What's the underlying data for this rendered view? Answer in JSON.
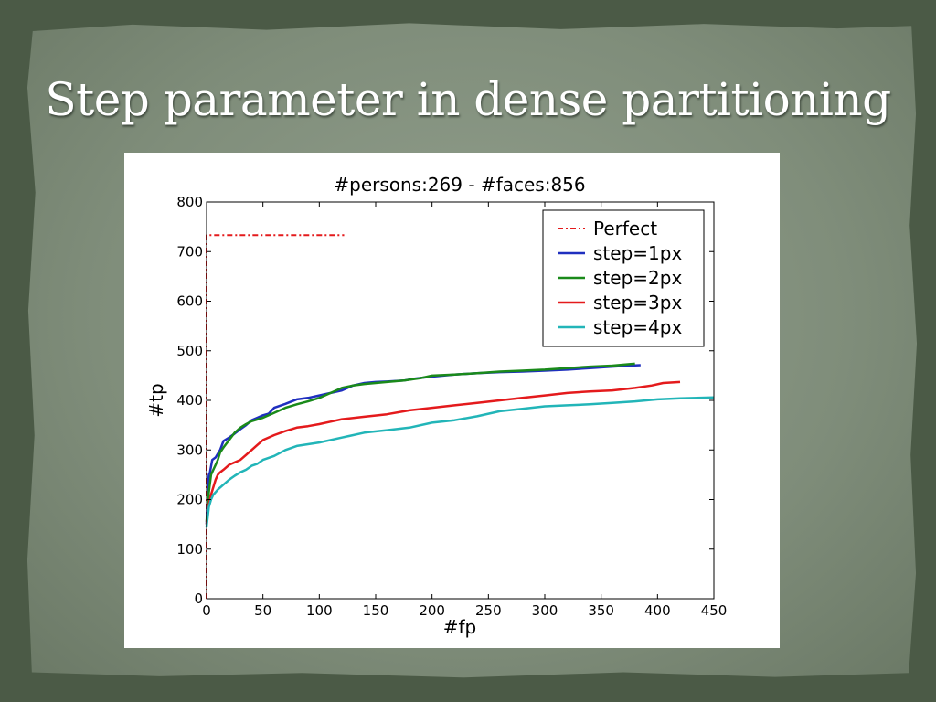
{
  "slide": {
    "title": "Step parameter in dense partitioning"
  },
  "colors": {
    "background": "#4b5a46",
    "paper": "#8b9886",
    "title_text": "#ffffff"
  },
  "chart_data": {
    "type": "line",
    "title": "#persons:269 - #faces:856",
    "xlabel": "#fp",
    "ylabel": "#tp",
    "xlim": [
      0,
      450
    ],
    "ylim": [
      0,
      800
    ],
    "xticks": [
      0,
      50,
      100,
      150,
      200,
      250,
      300,
      350,
      400,
      450
    ],
    "yticks": [
      0,
      100,
      200,
      300,
      400,
      500,
      600,
      700,
      800
    ],
    "grid": false,
    "legend_position": "top-right",
    "series": [
      {
        "name": "Perfect",
        "color": "#e41a1c",
        "dash": "dashdot",
        "x": [
          0,
          0,
          122
        ],
        "y": [
          0,
          733,
          733
        ]
      },
      {
        "name": "step=1px",
        "color": "#1f2fbf",
        "dash": "solid",
        "x": [
          0,
          1,
          2,
          3,
          5,
          8,
          12,
          15,
          20,
          25,
          30,
          35,
          40,
          45,
          50,
          55,
          60,
          70,
          80,
          90,
          100,
          110,
          120,
          130,
          140,
          150,
          160,
          175,
          185,
          200,
          220,
          240,
          260,
          280,
          300,
          320,
          340,
          360,
          375,
          385
        ],
        "y": [
          150,
          220,
          250,
          255,
          280,
          285,
          300,
          318,
          325,
          333,
          342,
          350,
          360,
          365,
          370,
          373,
          385,
          393,
          402,
          405,
          410,
          415,
          420,
          430,
          435,
          437,
          438,
          440,
          444,
          448,
          452,
          455,
          457,
          458,
          460,
          462,
          465,
          468,
          470,
          471
        ]
      },
      {
        "name": "step=2px",
        "color": "#1a8a1a",
        "dash": "solid",
        "x": [
          0,
          2,
          4,
          6,
          8,
          10,
          12,
          15,
          20,
          25,
          30,
          35,
          40,
          50,
          60,
          70,
          80,
          90,
          100,
          110,
          120,
          130,
          140,
          150,
          160,
          175,
          190,
          200,
          220,
          240,
          260,
          280,
          300,
          320,
          340,
          360,
          375,
          380
        ],
        "y": [
          155,
          215,
          250,
          260,
          270,
          280,
          295,
          305,
          320,
          335,
          345,
          352,
          358,
          365,
          375,
          385,
          392,
          398,
          405,
          415,
          425,
          430,
          433,
          435,
          437,
          440,
          445,
          450,
          452,
          455,
          458,
          460,
          462,
          465,
          468,
          470,
          473,
          474
        ]
      },
      {
        "name": "step=3px",
        "color": "#e41a1c",
        "dash": "solid",
        "x": [
          0,
          2,
          4,
          6,
          8,
          10,
          12,
          15,
          20,
          25,
          30,
          35,
          40,
          45,
          50,
          60,
          70,
          80,
          90,
          100,
          110,
          120,
          140,
          160,
          180,
          200,
          220,
          240,
          260,
          280,
          300,
          320,
          340,
          360,
          380,
          395,
          405,
          420
        ],
        "y": [
          150,
          190,
          210,
          225,
          240,
          250,
          255,
          260,
          270,
          275,
          280,
          290,
          300,
          310,
          320,
          330,
          338,
          345,
          348,
          352,
          357,
          362,
          367,
          372,
          380,
          385,
          390,
          395,
          400,
          405,
          410,
          415,
          418,
          420,
          425,
          430,
          435,
          437
        ]
      },
      {
        "name": "step=4px",
        "color": "#22b5b8",
        "dash": "solid",
        "x": [
          0,
          2,
          4,
          6,
          8,
          10,
          15,
          20,
          25,
          30,
          35,
          40,
          45,
          50,
          60,
          70,
          80,
          100,
          120,
          140,
          160,
          180,
          200,
          220,
          240,
          260,
          280,
          300,
          320,
          340,
          360,
          380,
          400,
          420,
          450
        ],
        "y": [
          145,
          185,
          200,
          210,
          215,
          220,
          230,
          240,
          248,
          255,
          260,
          268,
          272,
          280,
          288,
          300,
          308,
          315,
          325,
          335,
          340,
          345,
          355,
          360,
          368,
          378,
          383,
          388,
          390,
          392,
          395,
          398,
          402,
          404,
          406
        ]
      }
    ]
  }
}
